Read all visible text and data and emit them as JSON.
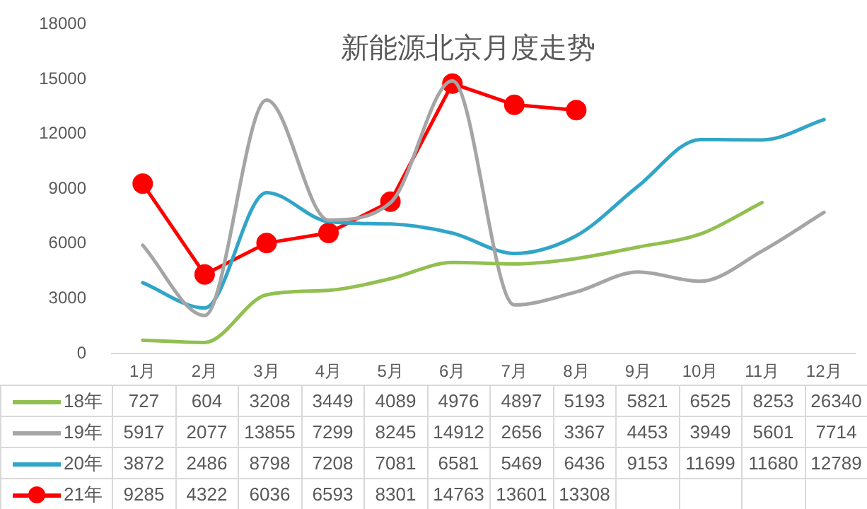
{
  "chart_data": {
    "type": "line",
    "title": "新能源北京月度走势",
    "categories": [
      "1月",
      "2月",
      "3月",
      "4月",
      "5月",
      "6月",
      "7月",
      "8月",
      "9月",
      "10月",
      "11月",
      "12月"
    ],
    "series": [
      {
        "name": "18年",
        "color": "#92c050",
        "marker": "none",
        "values": [
          727,
          604,
          3208,
          3449,
          4089,
          4976,
          4897,
          5193,
          5821,
          6525,
          8253,
          null
        ],
        "value_labels": [
          "727",
          "604",
          "3208",
          "3449",
          "4089",
          "4976",
          "4897",
          "5193",
          "5821",
          "6525",
          "8253",
          "26340"
        ]
      },
      {
        "name": "19年",
        "color": "#a5a5a5",
        "marker": "none",
        "values": [
          5917,
          2077,
          13855,
          7299,
          8245,
          14912,
          2656,
          3367,
          4453,
          3949,
          5601,
          7714
        ]
      },
      {
        "name": "20年",
        "color": "#31a5c8",
        "marker": "none",
        "values": [
          3872,
          2486,
          8798,
          7208,
          7081,
          6581,
          5469,
          6436,
          9153,
          11699,
          11680,
          12789
        ]
      },
      {
        "name": "21年",
        "color": "#ff0000",
        "marker": "circle",
        "values": [
          9285,
          4322,
          6036,
          6593,
          8301,
          14763,
          13601,
          13308,
          null,
          null,
          null,
          null
        ]
      }
    ],
    "ylim": [
      0,
      18000
    ],
    "yticks": [
      0,
      3000,
      6000,
      9000,
      12000,
      15000,
      18000
    ],
    "grid": false,
    "legend": "bottom",
    "data_labels": true
  }
}
